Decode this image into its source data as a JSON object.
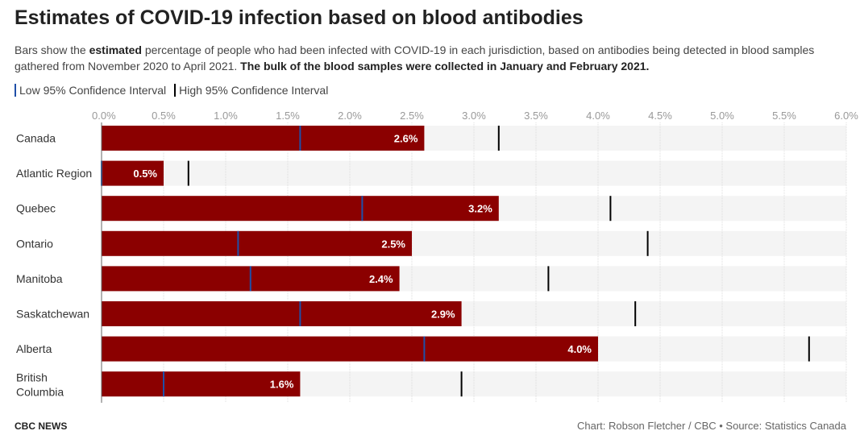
{
  "header": {
    "title": "Estimates of COVID-19 infection based on blood antibodies",
    "subtitle_a": "Bars show the ",
    "subtitle_b": "estimated",
    "subtitle_c": " percentage of people who had been infected with COVID-19 in each jurisdiction, based on antibodies being detected in blood samples gathered from November 2020 to April 2021. ",
    "subtitle_d": "The bulk of the blood samples were collected in January and February 2021."
  },
  "legend": {
    "low_label": "Low 95% Confidence Interval",
    "high_label": "High 95% Confidence Interval"
  },
  "colors": {
    "bar": "#8b0000",
    "low_marker": "#1f4fa8",
    "high_marker": "#000000",
    "track": "#f4f4f4",
    "grid": "#dddddd",
    "value_label": "#ffffff"
  },
  "chart_data": {
    "type": "bar",
    "orientation": "horizontal",
    "categories": [
      "Canada",
      "Atlantic Region",
      "Quebec",
      "Ontario",
      "Manitoba",
      "Saskatchewan",
      "Alberta",
      "British Columbia"
    ],
    "category_lines": [
      [
        "Canada"
      ],
      [
        "Atlantic Region"
      ],
      [
        "Quebec"
      ],
      [
        "Ontario"
      ],
      [
        "Manitoba"
      ],
      [
        "Saskatchewan"
      ],
      [
        "Alberta"
      ],
      [
        "British",
        "Columbia"
      ]
    ],
    "values": [
      2.6,
      0.5,
      3.2,
      2.5,
      2.4,
      2.9,
      4.0,
      1.6
    ],
    "value_labels": [
      "2.6%",
      "0.5%",
      "3.2%",
      "2.5%",
      "2.4%",
      "2.9%",
      "4.0%",
      "1.6%"
    ],
    "ci_low": [
      1.6,
      0.0,
      2.1,
      1.1,
      1.2,
      1.6,
      2.6,
      0.5
    ],
    "ci_high": [
      3.2,
      0.7,
      4.1,
      4.4,
      3.6,
      4.3,
      5.7,
      2.9
    ],
    "xlim": [
      0,
      6
    ],
    "xticks": [
      0,
      0.5,
      1,
      1.5,
      2,
      2.5,
      3,
      3.5,
      4,
      4.5,
      5,
      5.5,
      6
    ],
    "xtick_labels": [
      "0.0%",
      "0.5%",
      "1.0%",
      "1.5%",
      "2.0%",
      "2.5%",
      "3.0%",
      "3.5%",
      "4.0%",
      "4.5%",
      "5.0%",
      "5.5%",
      "6.0%"
    ],
    "grid": true
  },
  "footer": {
    "brand": "CBC NEWS",
    "credit": "Chart: Robson Fletcher / CBC • Source: Statistics Canada"
  }
}
